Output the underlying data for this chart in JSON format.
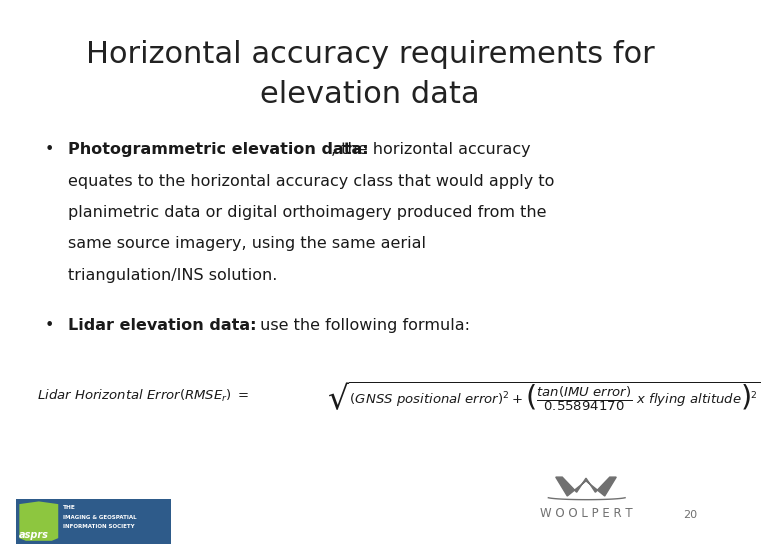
{
  "title_line1": "Horizontal accuracy requirements for",
  "title_line2": "elevation data",
  "title_fontsize": 22,
  "title_color": "#222222",
  "bg_color": "#ffffff",
  "bullet1_bold": "Photogrammetric elevation data:",
  "bullet1_normal_line1": ", the horizontal accuracy",
  "bullet1_lines": [
    "equates to the horizontal accuracy class that would apply to",
    "planimetric data or digital orthoimagery produced from the",
    "same source imagery, using the same aerial",
    "triangulation/INS solution."
  ],
  "bullet2_bold": "Lidar elevation data: ",
  "bullet2_normal": " use the following formula:",
  "text_color": "#1a1a1a",
  "body_fontsize": 11.5,
  "page_number": "20",
  "woolpert_color": "#707070",
  "asprs_bg": "#2e5b8a",
  "asprs_green": "#8dc63f",
  "formula_lhs": "$\\it{Lidar\\ Horizontal\\ Error(RMSE_r)\\ =\\ }$",
  "formula_rhs": "$\\sqrt{(GNSS\\ positional\\ error)^2 + \\left(\\dfrac{tan(IMU\\ error)}{0.55894170}\\ x\\ flying\\ altitude\\right)^{\\!2}}$"
}
